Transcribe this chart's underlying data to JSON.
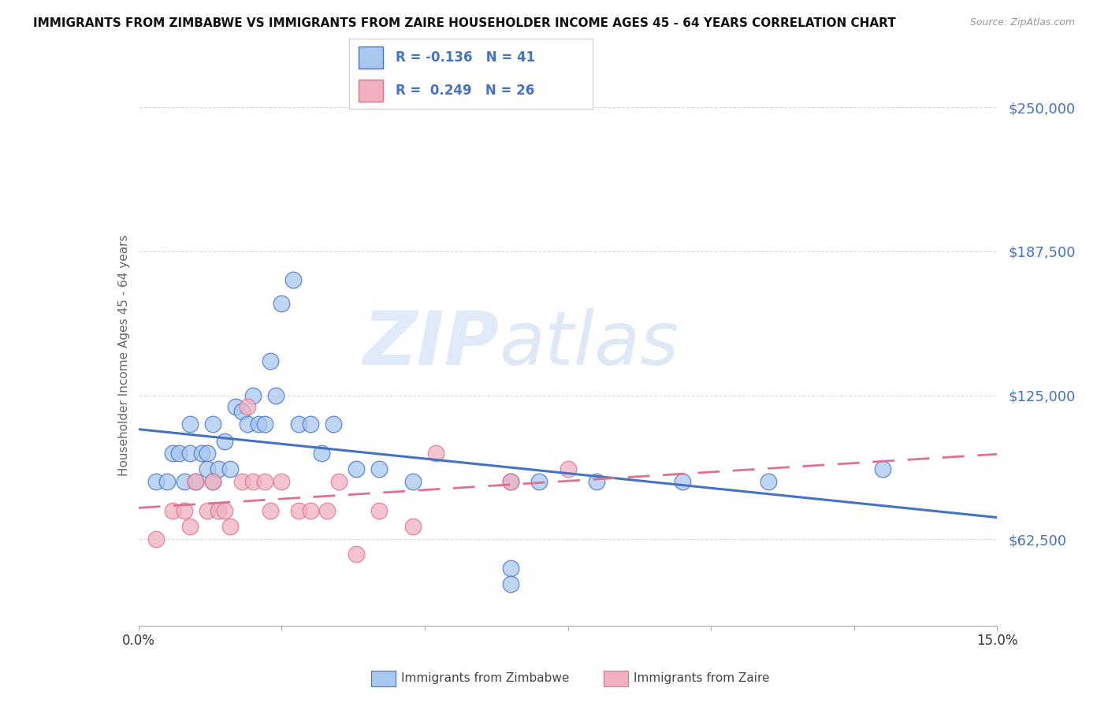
{
  "title": "IMMIGRANTS FROM ZIMBABWE VS IMMIGRANTS FROM ZAIRE HOUSEHOLDER INCOME AGES 45 - 64 YEARS CORRELATION CHART",
  "source": "Source: ZipAtlas.com",
  "ylabel": "Householder Income Ages 45 - 64 years",
  "xlim": [
    0,
    0.15
  ],
  "ylim": [
    25000,
    260000
  ],
  "yticks": [
    62500,
    125000,
    187500,
    250000
  ],
  "ytick_labels": [
    "$62,500",
    "$125,000",
    "$187,500",
    "$250,000"
  ],
  "xticks": [
    0.0,
    0.025,
    0.05,
    0.075,
    0.1,
    0.125,
    0.15
  ],
  "xtick_labels": [
    "0.0%",
    "",
    "",
    "",
    "",
    "",
    "15.0%"
  ],
  "zimbabwe_color": "#a8c8f0",
  "zaire_color": "#f0b0c0",
  "zimbabwe_line_color": "#4472c4",
  "zaire_line_color": "#e07090",
  "R_zimbabwe": -0.136,
  "N_zimbabwe": 41,
  "R_zaire": 0.249,
  "N_zaire": 26,
  "watermark_zip": "ZIP",
  "watermark_atlas": "atlas",
  "background_color": "#ffffff",
  "grid_color": "#d8d8d8",
  "zimbabwe_x": [
    0.003,
    0.005,
    0.006,
    0.007,
    0.008,
    0.009,
    0.009,
    0.01,
    0.011,
    0.012,
    0.012,
    0.013,
    0.013,
    0.014,
    0.015,
    0.016,
    0.017,
    0.018,
    0.019,
    0.02,
    0.021,
    0.022,
    0.023,
    0.024,
    0.025,
    0.027,
    0.028,
    0.03,
    0.032,
    0.034,
    0.038,
    0.042,
    0.048,
    0.065,
    0.065,
    0.065,
    0.07,
    0.08,
    0.095,
    0.11,
    0.13
  ],
  "zimbabwe_y": [
    87500,
    87500,
    100000,
    100000,
    87500,
    112500,
    100000,
    87500,
    100000,
    100000,
    93000,
    87500,
    112500,
    93000,
    105000,
    93000,
    120000,
    118000,
    112500,
    125000,
    112500,
    112500,
    140000,
    125000,
    165000,
    175000,
    112500,
    112500,
    100000,
    112500,
    93000,
    93000,
    87500,
    87500,
    50000,
    43000,
    87500,
    87500,
    87500,
    87500,
    93000
  ],
  "zaire_x": [
    0.003,
    0.006,
    0.008,
    0.009,
    0.01,
    0.012,
    0.013,
    0.014,
    0.015,
    0.016,
    0.018,
    0.019,
    0.02,
    0.022,
    0.023,
    0.025,
    0.028,
    0.03,
    0.033,
    0.035,
    0.038,
    0.042,
    0.048,
    0.052,
    0.065,
    0.075
  ],
  "zaire_y": [
    62500,
    75000,
    75000,
    68000,
    87500,
    75000,
    87500,
    75000,
    75000,
    68000,
    87500,
    120000,
    87500,
    87500,
    75000,
    87500,
    75000,
    75000,
    75000,
    87500,
    56000,
    75000,
    68000,
    100000,
    87500,
    93000
  ]
}
